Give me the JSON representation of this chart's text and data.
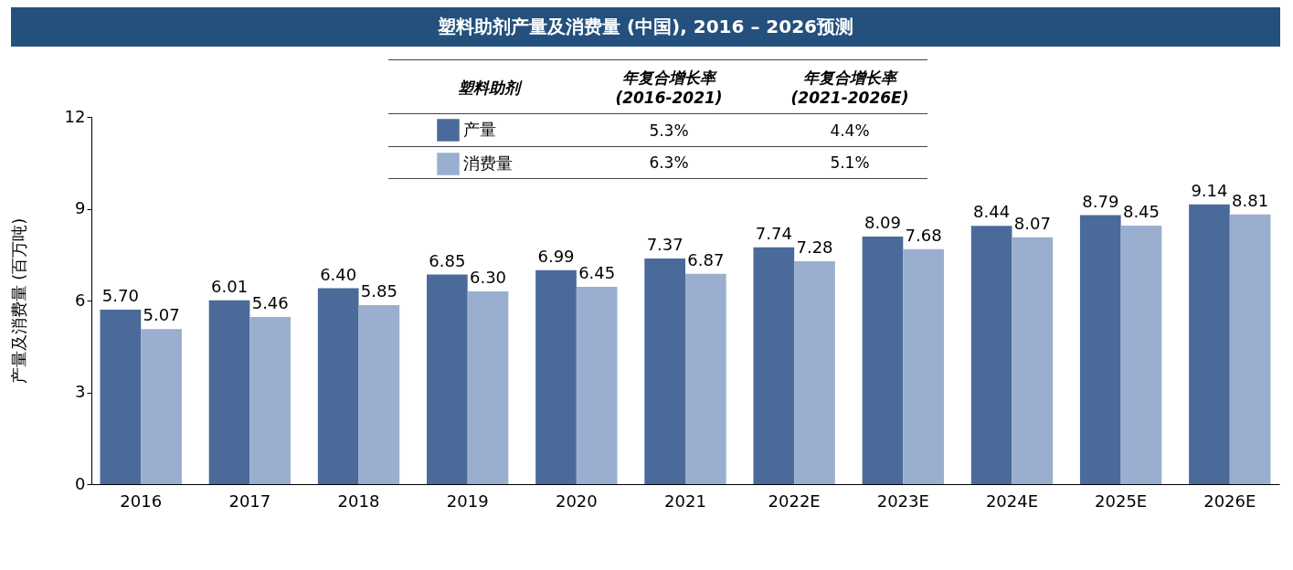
{
  "chart_data": {
    "type": "bar",
    "title": "塑料助剂产量及消费量 (中国), 2016 – 2026预测",
    "ylabel": "产量及消费量 (百万吨)",
    "categories": [
      "2016",
      "2017",
      "2018",
      "2019",
      "2020",
      "2021",
      "2022E",
      "2023E",
      "2024E",
      "2025E",
      "2026E"
    ],
    "series": [
      {
        "name": "产量",
        "color": "#4a6a9a",
        "values": [
          5.7,
          6.01,
          6.4,
          6.85,
          6.99,
          7.37,
          7.74,
          8.09,
          8.44,
          8.79,
          9.14
        ],
        "value_labels": [
          "5.70",
          "6.01",
          "6.40",
          "6.85",
          "6.99",
          "7.37",
          "7.74",
          "8.09",
          "8.44",
          "8.79",
          "9.14"
        ]
      },
      {
        "name": "消费量",
        "color": "#9aafcf",
        "values": [
          5.07,
          5.46,
          5.85,
          6.3,
          6.45,
          6.87,
          7.28,
          7.68,
          8.07,
          8.45,
          8.81
        ],
        "value_labels": [
          "5.07",
          "5.46",
          "5.85",
          "6.30",
          "6.45",
          "6.87",
          "7.28",
          "7.68",
          "8.07",
          "8.45",
          "8.81"
        ]
      }
    ],
    "ylim": [
      0,
      12
    ],
    "yticks": [
      0,
      3,
      6,
      9,
      12
    ],
    "grid": false,
    "legend": "top",
    "annotations": [
      "塑料助剂",
      "年复合增长率 (2016-2021)",
      "年复合增长率 (2021-2026E)",
      "5.3%",
      "4.4%",
      "6.3%",
      "5.1%"
    ]
  }
}
